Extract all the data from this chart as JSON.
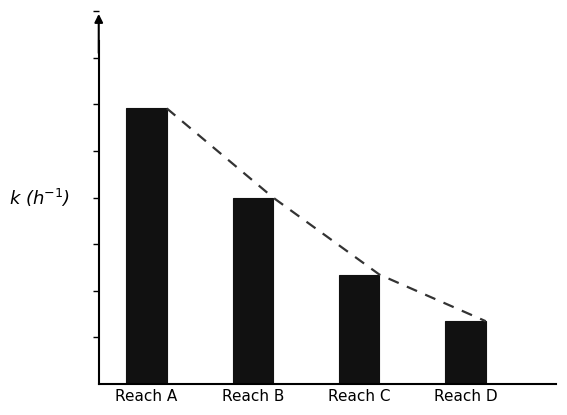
{
  "categories": [
    "Reach A",
    "Reach B",
    "Reach C",
    "Reach D"
  ],
  "values": [
    0.68,
    0.46,
    0.27,
    0.155
  ],
  "bar_color": "#111111",
  "bar_width": 0.38,
  "bar_positions": [
    1,
    2,
    3,
    4
  ],
  "ylabel_k": "$k$",
  "ylabel_unit": " (h$^{-1}$)",
  "ylim": [
    0,
    0.92
  ],
  "xlim": [
    0.55,
    4.85
  ],
  "ytick_count": 8,
  "background_color": "#ffffff",
  "dashed_line_color": "#333333",
  "dashed_linewidth": 1.6,
  "bar_edge_color": "#111111",
  "arrow_color": "#000000",
  "spine_linewidth": 1.5,
  "xlabel_fontsize": 11,
  "ylabel_fontsize": 13
}
